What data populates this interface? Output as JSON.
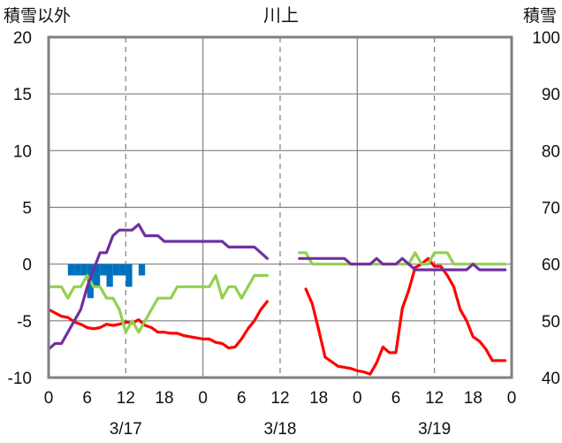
{
  "chart_data": {
    "type": "line",
    "title": "川上",
    "left_axis": {
      "label": "積雪以外",
      "ylim": [
        -10,
        20
      ],
      "ticks": [
        20,
        15,
        10,
        5,
        0,
        -5,
        -10
      ],
      "tick_labels": [
        "20",
        "15",
        "10",
        "5",
        "0",
        "-5",
        "-10"
      ]
    },
    "right_axis": {
      "label": "積雪",
      "ylim": [
        40,
        100
      ],
      "ticks": [
        100,
        90,
        80,
        70,
        60,
        50,
        40
      ],
      "tick_labels": [
        "100",
        "90",
        "80",
        "70",
        "60",
        "50",
        "40"
      ]
    },
    "x_axis": {
      "xlim": [
        0,
        72
      ],
      "ticks": [
        0,
        6,
        12,
        18,
        24,
        30,
        36,
        42,
        48,
        54,
        60,
        66,
        72
      ],
      "tick_labels": [
        "0",
        "6",
        "12",
        "18",
        "0",
        "6",
        "12",
        "18",
        "0",
        "6",
        "12",
        "18",
        "0"
      ],
      "date_labels": [
        {
          "x": 12,
          "label": "3/17"
        },
        {
          "x": 36,
          "label": "3/18"
        },
        {
          "x": 60,
          "label": "3/19"
        }
      ],
      "day_boundaries": [
        24,
        48
      ],
      "grid_dashed": [
        12,
        36,
        60
      ]
    },
    "grid": true,
    "series": [
      {
        "name": "",
        "axis": "left",
        "type": "bar",
        "color": "#0070c0",
        "x": [
          3,
          4,
          5,
          6,
          7,
          8,
          9,
          10,
          11,
          12,
          14
        ],
        "values": [
          -1.0,
          -1.0,
          -1.0,
          -3.0,
          -2.0,
          -1.0,
          -2.0,
          -1.0,
          -1.0,
          -2.0,
          -1.0
        ]
      },
      {
        "name": "",
        "axis": "left",
        "type": "line",
        "color": "#ff0000",
        "segments": [
          {
            "x": [
              0,
              1,
              2,
              3,
              4,
              5,
              6,
              7,
              8,
              9,
              10,
              11,
              12,
              13,
              14,
              15,
              16,
              17,
              18,
              19,
              20,
              21,
              22,
              23,
              24,
              25,
              26,
              27,
              28,
              29,
              30,
              31,
              32,
              33,
              34
            ],
            "y": [
              -4.0,
              -4.3,
              -4.6,
              -4.7,
              -5.1,
              -5.3,
              -5.6,
              -5.7,
              -5.6,
              -5.3,
              -5.4,
              -5.3,
              -5.1,
              -5.2,
              -4.9,
              -5.4,
              -5.6,
              -6.0,
              -6.0,
              -6.1,
              -6.1,
              -6.3,
              -6.4,
              -6.5,
              -6.6,
              -6.6,
              -6.9,
              -7.0,
              -7.4,
              -7.3,
              -6.6,
              -5.7,
              -5.0,
              -4.0,
              -3.3
            ]
          },
          {
            "x": [
              40,
              41,
              42,
              43,
              44,
              45,
              46,
              47,
              48,
              49,
              50,
              51,
              52,
              53,
              54,
              55,
              56,
              57,
              58,
              59,
              60,
              61,
              62,
              63,
              64,
              65,
              66,
              67,
              68,
              69,
              70,
              71
            ],
            "y": [
              -2.2,
              -3.5,
              -5.8,
              -8.2,
              -8.6,
              -9.0,
              -9.1,
              -9.2,
              -9.4,
              -9.5,
              -9.7,
              -8.7,
              -7.3,
              -7.8,
              -7.8,
              -3.9,
              -2.3,
              -0.3,
              0.0,
              0.5,
              -0.2,
              -0.2,
              -1.0,
              -2.0,
              -4.0,
              -5.0,
              -6.4,
              -6.8,
              -7.5,
              -8.5,
              -8.5,
              -8.5
            ]
          }
        ]
      },
      {
        "name": "",
        "axis": "left",
        "type": "line",
        "color": "#92d050",
        "segments": [
          {
            "x": [
              0,
              1,
              2,
              3,
              4,
              5,
              6,
              7,
              8,
              9,
              10,
              11,
              12,
              13,
              14,
              15,
              16,
              17,
              18,
              19,
              20,
              21,
              22,
              23,
              24,
              25,
              26,
              27,
              28,
              29,
              30,
              31,
              32,
              33,
              34
            ],
            "y": [
              -2.0,
              -2.0,
              -2.0,
              -3.0,
              -2.0,
              -2.0,
              -1.0,
              -2.0,
              -2.0,
              -3.0,
              -3.0,
              -4.0,
              -6.0,
              -5.0,
              -6.0,
              -5.0,
              -4.0,
              -3.0,
              -3.0,
              -3.0,
              -2.0,
              -2.0,
              -2.0,
              -2.0,
              -2.0,
              -2.0,
              -1.0,
              -3.0,
              -2.0,
              -2.0,
              -3.0,
              -2.0,
              -1.0,
              -1.0,
              -1.0
            ]
          },
          {
            "x": [
              39,
              40,
              41,
              42,
              43,
              44,
              45,
              46,
              47,
              48,
              49,
              50,
              51,
              52,
              53,
              54,
              55,
              56,
              57,
              58,
              59,
              60,
              61,
              62,
              63,
              64,
              65,
              66,
              67,
              68,
              69,
              70,
              71
            ],
            "y": [
              1.0,
              1.0,
              0.0,
              0.0,
              0.0,
              0.0,
              0.0,
              0.0,
              0.0,
              0.0,
              0.0,
              0.0,
              0.0,
              0.0,
              0.0,
              0.0,
              0.0,
              0.0,
              1.0,
              0.0,
              0.0,
              1.0,
              1.0,
              1.0,
              0.0,
              0.0,
              0.0,
              0.0,
              0.0,
              0.0,
              0.0,
              0.0,
              0.0
            ]
          }
        ]
      },
      {
        "name": "",
        "axis": "right",
        "type": "line",
        "color": "#7030a0",
        "segments": [
          {
            "x": [
              0,
              1,
              2,
              3,
              4,
              5,
              6,
              7,
              8,
              9,
              10,
              11,
              12,
              13,
              14,
              15,
              16,
              17,
              18,
              19,
              20,
              21,
              22,
              23,
              24,
              25,
              26,
              27,
              28,
              29,
              30,
              31,
              32,
              33,
              34
            ],
            "y": [
              45,
              46,
              46,
              48,
              50,
              52,
              56,
              59,
              62,
              62,
              65,
              66,
              66,
              66,
              67,
              65,
              65,
              65,
              64,
              64,
              64,
              64,
              64,
              64,
              64,
              64,
              64,
              64,
              63,
              63,
              63,
              63,
              63,
              62,
              61
            ]
          },
          {
            "x": [
              39,
              40,
              41,
              42,
              43,
              44,
              45,
              46,
              47,
              48,
              49,
              50,
              51,
              52,
              53,
              54,
              55,
              56,
              57,
              58,
              59,
              60,
              61,
              62,
              63,
              64,
              65,
              66,
              67,
              68,
              69,
              70,
              71
            ],
            "y": [
              61,
              61,
              61,
              61,
              61,
              61,
              61,
              61,
              60,
              60,
              60,
              60,
              61,
              60,
              60,
              60,
              61,
              60,
              59,
              59,
              59,
              59,
              59,
              59,
              59,
              59,
              59,
              60,
              59,
              59,
              59,
              59,
              59
            ]
          }
        ]
      }
    ]
  }
}
